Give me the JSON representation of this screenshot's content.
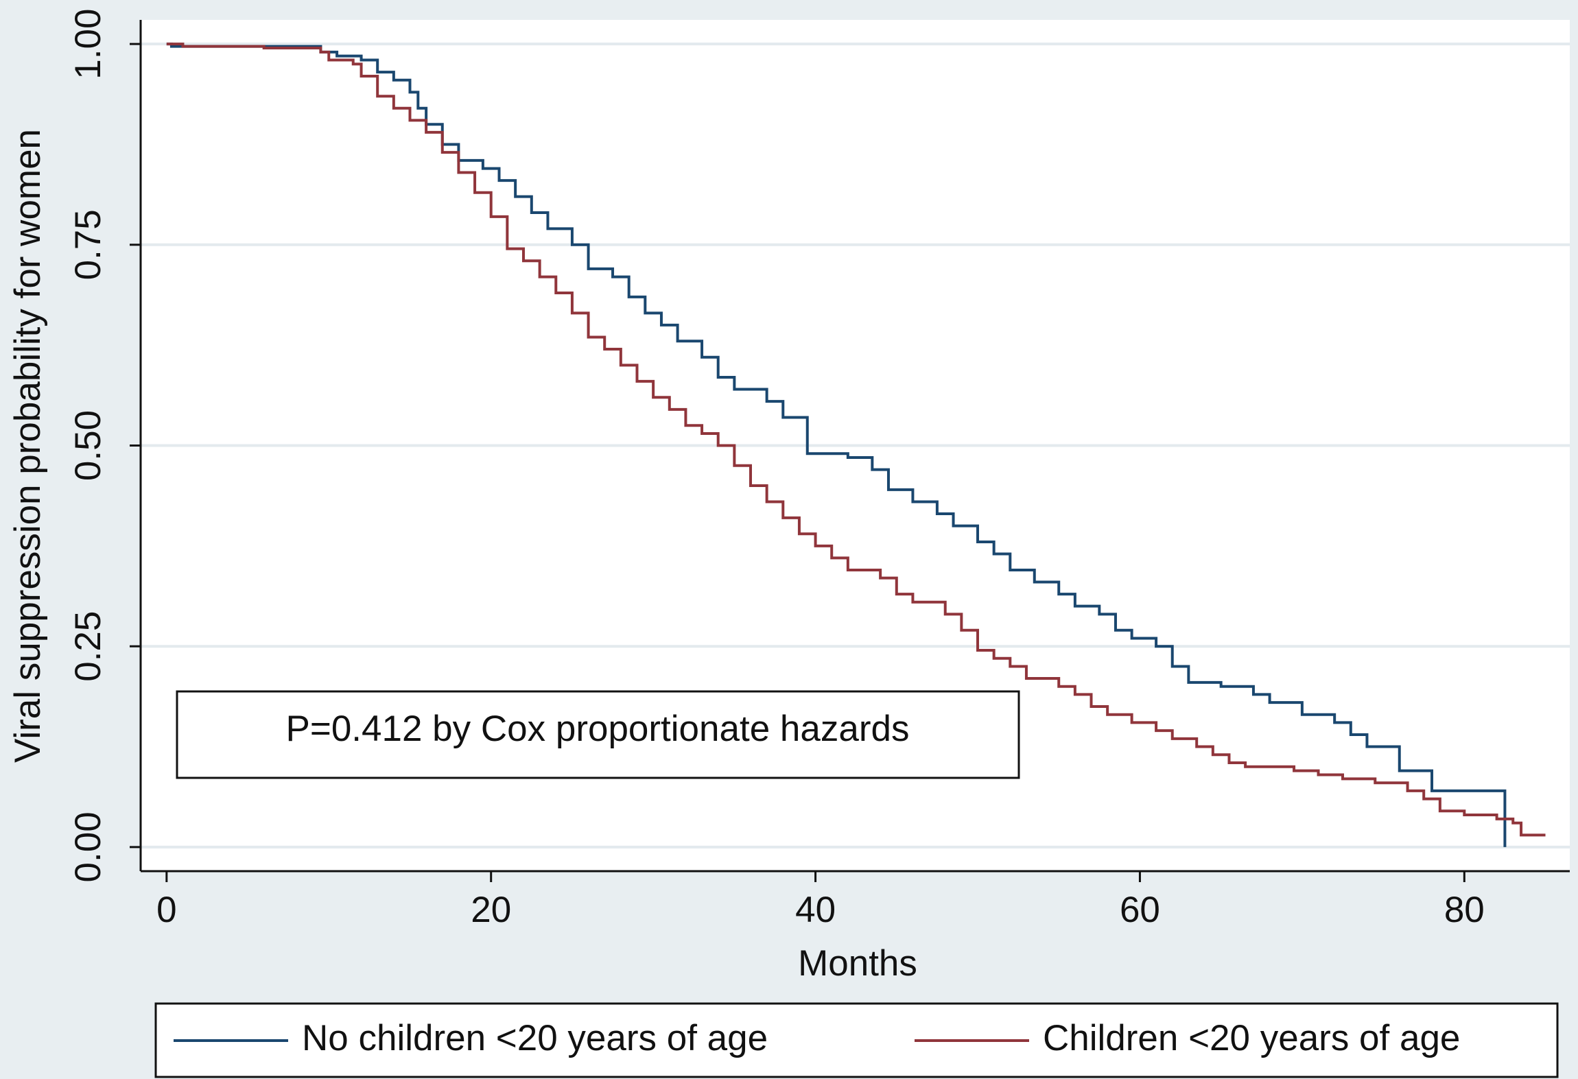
{
  "chart_data": {
    "type": "step",
    "y_label": "Viral suppression probability for women",
    "x_label": "Months",
    "annotation": "P=0.412 by Cox proportionate hazards",
    "xlim": [
      -1.6,
      86.5
    ],
    "ylim": [
      -0.03,
      1.03
    ],
    "xticks": [
      0,
      20,
      40,
      60,
      80
    ],
    "yticks": [
      {
        "value": 0,
        "label": "0.00"
      },
      {
        "value": 0.25,
        "label": "0.25"
      },
      {
        "value": 0.5,
        "label": "0.50"
      },
      {
        "value": 0.75,
        "label": "0.75"
      },
      {
        "value": 1,
        "label": "1.00"
      }
    ],
    "grid": true,
    "legend": "bottom",
    "series": [
      {
        "name": "No children <20 years of age",
        "color": "#1a476f",
        "x": [
          0,
          0.3,
          9.5,
          10.5,
          12,
          13,
          14,
          15,
          15.5,
          16,
          17,
          18,
          19.5,
          20.5,
          21.5,
          22.5,
          23.5,
          25,
          26,
          27.5,
          28.5,
          29.5,
          30.5,
          31.5,
          33,
          34,
          35,
          37,
          38,
          39.5,
          42,
          43.5,
          44.5,
          46,
          47.5,
          48.5,
          50,
          51,
          52,
          53.5,
          55,
          56,
          57.5,
          58.5,
          59.5,
          61,
          62,
          63,
          65,
          67,
          68,
          70,
          72,
          73,
          74,
          76,
          78,
          80,
          82.5
        ],
        "values": [
          1.0,
          0.997,
          0.99,
          0.985,
          0.98,
          0.965,
          0.955,
          0.94,
          0.92,
          0.9,
          0.875,
          0.855,
          0.845,
          0.83,
          0.81,
          0.79,
          0.77,
          0.75,
          0.72,
          0.71,
          0.685,
          0.665,
          0.65,
          0.63,
          0.61,
          0.585,
          0.57,
          0.555,
          0.535,
          0.49,
          0.485,
          0.47,
          0.445,
          0.43,
          0.415,
          0.4,
          0.38,
          0.365,
          0.345,
          0.33,
          0.315,
          0.3,
          0.29,
          0.27,
          0.26,
          0.25,
          0.225,
          0.205,
          0.2,
          0.19,
          0.18,
          0.165,
          0.155,
          0.14,
          0.125,
          0.095,
          0.07,
          0.07,
          0.0
        ]
      },
      {
        "name": "Children <20 years of age",
        "color": "#90353b",
        "x": [
          0,
          1,
          6,
          9.5,
          10,
          11.5,
          12,
          13,
          14,
          15,
          16,
          17,
          18,
          19,
          20,
          21,
          22,
          23,
          24,
          25,
          26,
          27,
          28,
          29,
          30,
          31,
          32,
          33,
          34,
          35,
          36,
          37,
          38,
          39,
          40,
          41,
          42,
          44,
          45,
          46,
          48,
          49,
          50,
          51,
          52,
          53,
          55,
          56,
          57,
          58,
          59.5,
          61,
          62,
          63.5,
          64.5,
          65.5,
          66.5,
          69.5,
          71,
          72.5,
          74.5,
          76.5,
          77.5,
          78.5,
          80,
          82,
          83,
          83.5,
          85
        ],
        "values": [
          1.0,
          0.997,
          0.995,
          0.99,
          0.98,
          0.975,
          0.96,
          0.935,
          0.92,
          0.905,
          0.89,
          0.865,
          0.84,
          0.815,
          0.785,
          0.745,
          0.73,
          0.71,
          0.69,
          0.665,
          0.635,
          0.62,
          0.6,
          0.58,
          0.56,
          0.545,
          0.525,
          0.515,
          0.5,
          0.475,
          0.45,
          0.43,
          0.41,
          0.39,
          0.375,
          0.36,
          0.345,
          0.335,
          0.315,
          0.305,
          0.29,
          0.27,
          0.245,
          0.235,
          0.225,
          0.21,
          0.2,
          0.19,
          0.175,
          0.165,
          0.155,
          0.145,
          0.135,
          0.125,
          0.115,
          0.105,
          0.1,
          0.095,
          0.09,
          0.085,
          0.08,
          0.07,
          0.06,
          0.045,
          0.04,
          0.035,
          0.03,
          0.015,
          0.015
        ]
      }
    ]
  }
}
